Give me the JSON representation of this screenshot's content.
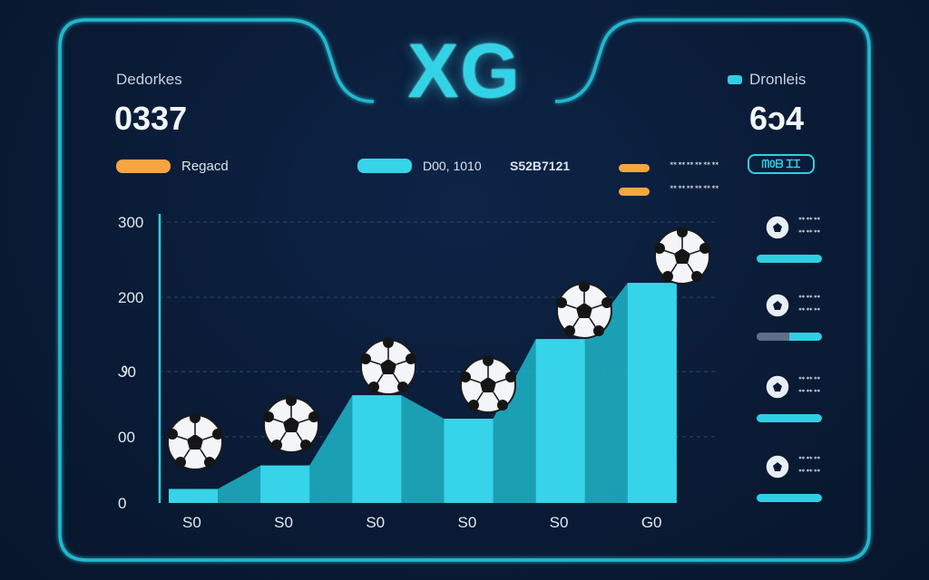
{
  "header": {
    "title": "XG",
    "left_stat": {
      "label": "Dedorkes",
      "value": "0337"
    },
    "right_stat": {
      "label": "Dronleis",
      "value": "6ɔ4"
    },
    "right_button": "ᗰ0ᗷ ᏆᏆ"
  },
  "legend": {
    "left": "Regacd",
    "center_text": "D00, 1010",
    "center_code": "S52B7121",
    "tag_top": "ᕯᕯᕯᕯᕯᕯ",
    "tag_bottom": "ᕯᕯᕯᕯᕯᕯ"
  },
  "side_items": [
    {
      "tag_top": "ᕯᕯᕯ",
      "tag_bottom": "ᕯᕯᕯ",
      "fill": 1.0
    },
    {
      "tag_top": "ᕯᕯᕯ",
      "tag_bottom": "ᕯᕯᕯ",
      "fill": 0.5
    },
    {
      "tag_top": "ᕯᕯᕯ",
      "tag_bottom": "ᕯᕯᕯ",
      "fill": 1.0
    },
    {
      "tag_top": "ᕯᕯᕯ",
      "tag_bottom": "ᕯᕯᕯ",
      "fill": 1.0
    }
  ],
  "colors": {
    "accent": "#2fcfe3",
    "bar": "#35d4e8",
    "area": "#1fb6c9",
    "orange": "#f5a640",
    "frame": "#22b8cf"
  },
  "chart_data": {
    "type": "bar",
    "categories": [
      "S0",
      "S0",
      "S0",
      "S0",
      "S0",
      "G0"
    ],
    "values": [
      15,
      40,
      115,
      90,
      175,
      235
    ],
    "y_ticks": [
      "0",
      "00",
      "Ꮽ0",
      "200",
      "300"
    ],
    "ylim": [
      0,
      300
    ],
    "grid": true,
    "markers": "soccer-ball"
  }
}
